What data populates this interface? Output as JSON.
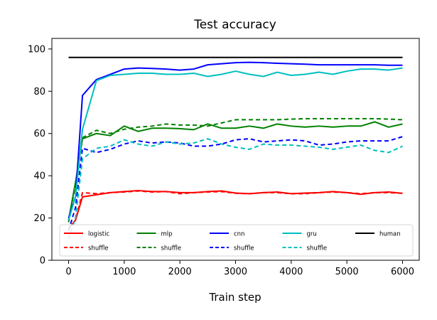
{
  "chart_data": {
    "type": "line",
    "title": "Test accuracy",
    "xlabel": "Train step",
    "ylabel": "",
    "xlim": [
      -300,
      6300
    ],
    "ylim": [
      0,
      105
    ],
    "xticks": [
      0,
      1000,
      2000,
      3000,
      4000,
      5000,
      6000
    ],
    "yticks": [
      0,
      20,
      40,
      60,
      80,
      100
    ],
    "grid": false,
    "legend_position": "bottom",
    "legend_columns": 5,
    "x": [
      0,
      125,
      250,
      500,
      750,
      1000,
      1250,
      1500,
      1750,
      2000,
      2250,
      2500,
      2750,
      3000,
      3250,
      3500,
      3750,
      4000,
      4250,
      4500,
      4750,
      5000,
      5250,
      5500,
      5750,
      6000
    ],
    "series": [
      {
        "name": "logistic",
        "color": "#ff0000",
        "dash": "solid",
        "values": [
          15,
          19,
          30,
          31,
          32,
          32.5,
          33,
          32.5,
          32.5,
          32,
          32,
          32.5,
          32.8,
          31.8,
          31.5,
          32,
          32.3,
          31.5,
          31.8,
          32,
          32.5,
          32,
          31.2,
          32,
          32.3,
          31.7
        ]
      },
      {
        "name": "shuffle",
        "color": "#ff0000",
        "dash": "dashed",
        "values": [
          15,
          19,
          32,
          31.5,
          32,
          32.3,
          32.8,
          32.3,
          32.5,
          31.5,
          32,
          32.3,
          32.5,
          31.7,
          31.5,
          32,
          32,
          31.5,
          31.5,
          32,
          32.3,
          32,
          31.5,
          32,
          32,
          31.7
        ]
      },
      {
        "name": "mlp",
        "color": "#008000",
        "dash": "solid",
        "values": [
          19,
          37,
          57.5,
          60,
          59,
          63.5,
          61,
          62.5,
          62.5,
          62.3,
          61.8,
          64.5,
          62.5,
          62.5,
          63.5,
          62.5,
          64.5,
          63.5,
          63,
          63.5,
          63,
          63.5,
          63.5,
          65.5,
          63,
          64.5
        ]
      },
      {
        "name": "shuffle",
        "color": "#008000",
        "dash": "dashed",
        "values": [
          18,
          36,
          58,
          61.5,
          60,
          62,
          63,
          63.5,
          64.5,
          64,
          64,
          63.5,
          65,
          66.5,
          66.5,
          66.5,
          66.5,
          66.8,
          67,
          67,
          67,
          67,
          67,
          67,
          66.8,
          66.5
        ]
      },
      {
        "name": "cnn",
        "color": "#0000ff",
        "dash": "solid",
        "values": [
          20,
          30,
          78,
          85.5,
          88,
          90.5,
          91,
          90.8,
          90.5,
          90,
          90.5,
          92.5,
          93,
          93.5,
          93.7,
          93.5,
          93.2,
          93,
          92.8,
          92.5,
          92.5,
          92.5,
          92.5,
          92.5,
          92.3,
          92.3
        ]
      },
      {
        "name": "shuffle",
        "color": "#0000ff",
        "dash": "dashed",
        "values": [
          14,
          25,
          53,
          51,
          52.5,
          55,
          56.5,
          55.5,
          56,
          55.5,
          54,
          54,
          55,
          57,
          57.5,
          56,
          56.5,
          57,
          56.5,
          54.5,
          55,
          56,
          56.5,
          56.5,
          56.5,
          58.5
        ]
      },
      {
        "name": "gru",
        "color": "#00bfbf",
        "dash": "solid",
        "values": [
          19,
          30,
          62,
          85,
          87.5,
          88,
          88.5,
          88.5,
          88,
          88,
          88.5,
          87,
          88,
          89.5,
          88,
          87,
          89,
          87.5,
          88,
          89,
          88,
          89.5,
          90.5,
          90.5,
          90,
          91
        ]
      },
      {
        "name": "shuffle",
        "color": "#00bfbf",
        "dash": "dashed",
        "values": [
          10,
          20,
          48,
          53,
          54,
          57,
          55,
          54,
          56,
          55,
          55.5,
          57.5,
          55,
          53.5,
          52.5,
          55,
          54.5,
          54.5,
          54,
          53.5,
          52.5,
          53.5,
          54.5,
          52,
          51,
          54
        ]
      },
      {
        "name": "human",
        "color": "#000000",
        "dash": "solid",
        "values": [
          96,
          96,
          96,
          96,
          96,
          96,
          96,
          96,
          96,
          96,
          96,
          96,
          96,
          96,
          96,
          96,
          96,
          96,
          96,
          96,
          96,
          96,
          96,
          96,
          96,
          96
        ]
      }
    ]
  }
}
